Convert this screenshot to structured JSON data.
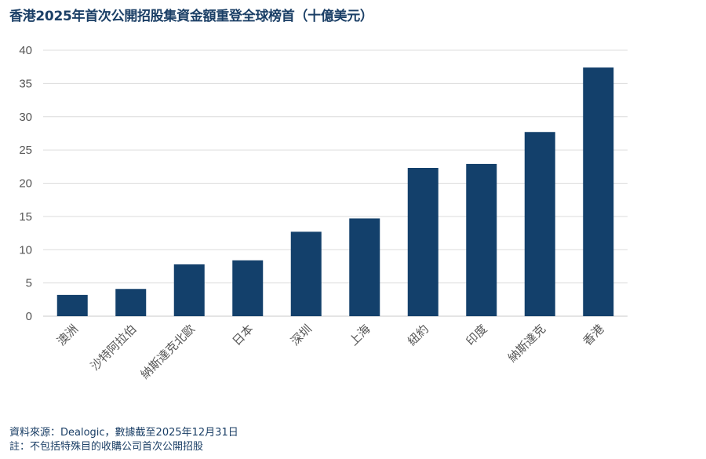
{
  "chart_data": {
    "type": "bar",
    "title": "香港2025年首次公開招股集資金額重登全球榜首（十億美元）",
    "categories": [
      "澳洲",
      "沙特阿拉伯",
      "納斯達克北歐",
      "日本",
      "深圳",
      "上海",
      "紐約",
      "印度",
      "納斯達克",
      "香港"
    ],
    "values": [
      3.2,
      4.1,
      7.8,
      8.4,
      12.7,
      14.7,
      22.3,
      22.9,
      27.7,
      37.4
    ],
    "xlabel": "",
    "ylabel": "",
    "ylim": [
      0,
      40
    ],
    "yticks": [
      0,
      5,
      10,
      15,
      20,
      25,
      30,
      35,
      40
    ],
    "grid": true,
    "bar_color": "#13406b"
  },
  "footnotes": {
    "source": "資料來源：Dealogic，數據截至2025年12月31日",
    "note": "註：不包括特殊目的收購公司首次公開招股"
  }
}
